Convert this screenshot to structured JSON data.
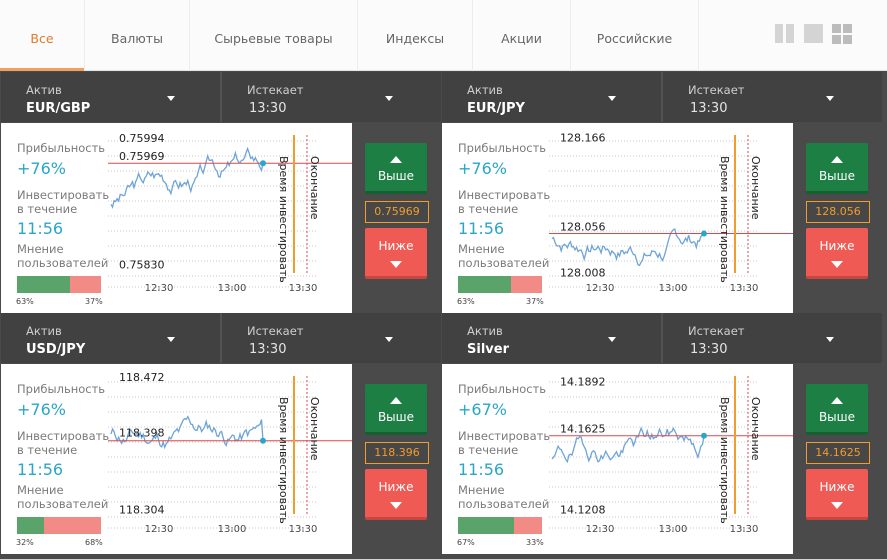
{
  "tabs": [
    "Все",
    "Валюты",
    "Сырьевые товары",
    "Индексы",
    "Акции",
    "Российские"
  ],
  "labels": {
    "asset": "Актив",
    "expires": "Истекает",
    "profit": "Прибыльность",
    "invest_within": "Инвестировать в течение",
    "user_opinion": "Мнение пользователей",
    "up": "Выше",
    "down": "Ниже",
    "invest_time": "Время инвестировать",
    "expiry": "Окончание",
    "x_ticks": [
      "12:30",
      "13:00",
      "13:30"
    ]
  },
  "panels": [
    {
      "asset": "EUR/GBP",
      "expires": "13:30",
      "profit": "+76%",
      "time": "11:56",
      "up_pct": 63,
      "down_pct": 37,
      "up_label": "63%",
      "down_label": "37%",
      "price": "0.75969",
      "levels": [
        {
          "text": "0.75994",
          "value": 0.75994
        },
        {
          "text": "0.75969",
          "value": 0.75969
        },
        {
          "text": "0.75830",
          "value": 0.7583
        }
      ],
      "current": 0.75969,
      "ymin": 0.7581,
      "ymax": 0.76005,
      "seed": 3,
      "trend": 0.8
    },
    {
      "asset": "EUR/JPY",
      "expires": "13:30",
      "profit": "+76%",
      "time": "11:56",
      "up_pct": 63,
      "down_pct": 37,
      "up_label": "63%",
      "down_label": "37%",
      "price": "128.056",
      "levels": [
        {
          "text": "128.166",
          "value": 128.166
        },
        {
          "text": "128.056",
          "value": 128.056
        },
        {
          "text": "128.008",
          "value": 128.008
        }
      ],
      "current": 128.056,
      "ymin": 128.0,
      "ymax": 128.175,
      "seed": 7,
      "trend": 0.1
    },
    {
      "asset": "USD/JPY",
      "expires": "13:30",
      "profit": "+76%",
      "time": "11:56",
      "up_pct": 32,
      "down_pct": 68,
      "up_label": "32%",
      "down_label": "68%",
      "price": "118.396",
      "levels": [
        {
          "text": "118.472",
          "value": 118.472
        },
        {
          "text": "118.398",
          "value": 118.398
        },
        {
          "text": "118.304",
          "value": 118.304
        }
      ],
      "current": 118.396,
      "ymin": 118.29,
      "ymax": 118.48,
      "seed": 11,
      "trend": -0.1
    },
    {
      "asset": "Silver",
      "expires": "13:30",
      "profit": "+67%",
      "time": "11:56",
      "up_pct": 67,
      "down_pct": 33,
      "up_label": "67%",
      "down_label": "33%",
      "price": "14.1625",
      "levels": [
        {
          "text": "14.1892",
          "value": 14.1892
        },
        {
          "text": "14.1625",
          "value": 14.1625
        },
        {
          "text": "14.1208",
          "value": 14.1208
        }
      ],
      "current": 14.1625,
      "ymin": 14.115,
      "ymax": 14.195,
      "seed": 19,
      "trend": 0.6
    }
  ],
  "colors": {
    "accent": "#e07b2f",
    "profit": "#2aa6c9",
    "up": "#1e7f45",
    "down": "#f05a55",
    "price_border": "#f39c2c",
    "line": "#6ea4d8",
    "level": "#e04848"
  }
}
